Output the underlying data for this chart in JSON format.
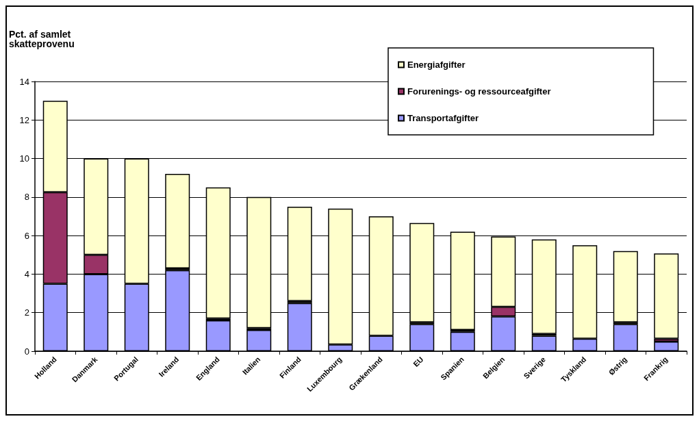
{
  "chart_data": {
    "type": "bar",
    "stacked": true,
    "ylabel": "Pct. af samlet\nskatteprovenu",
    "categories": [
      "Holland",
      "Danmark",
      "Portugal",
      "Ireland",
      "England",
      "Italien",
      "Finland",
      "Luxembourg",
      "Grækenland",
      "EU",
      "Spanien",
      "Belgien",
      "Sverige",
      "Tyskland",
      "Østrig",
      "Frankrig"
    ],
    "series": [
      {
        "name": "Transportafgifter",
        "color": "#9999ff",
        "values": [
          3.5,
          4,
          3.5,
          4.2,
          1.6,
          1.1,
          2.5,
          0.35,
          0.8,
          1.4,
          1.0,
          1.8,
          0.8,
          0.65,
          1.4,
          0.5
        ]
      },
      {
        "name": "Forurenings- og ressourceafgifter",
        "color": "#993366",
        "values": [
          4.75,
          1,
          0,
          0.1,
          0.1,
          0.1,
          0.1,
          0,
          0,
          0.1,
          0.1,
          0.5,
          0.1,
          0,
          0.1,
          0.15
        ]
      },
      {
        "name": "Energiafgifter",
        "color": "#ffffcc",
        "values": [
          4.75,
          5,
          6.5,
          4.9,
          6.8,
          6.8,
          4.9,
          7.05,
          6.2,
          5.15,
          5.1,
          3.65,
          4.9,
          4.85,
          3.7,
          4.42
        ]
      }
    ],
    "ylim": [
      0,
      14
    ],
    "yticks": [
      0,
      2,
      4,
      6,
      8,
      10,
      12,
      14
    ],
    "grid": "y",
    "legend": "top right"
  }
}
